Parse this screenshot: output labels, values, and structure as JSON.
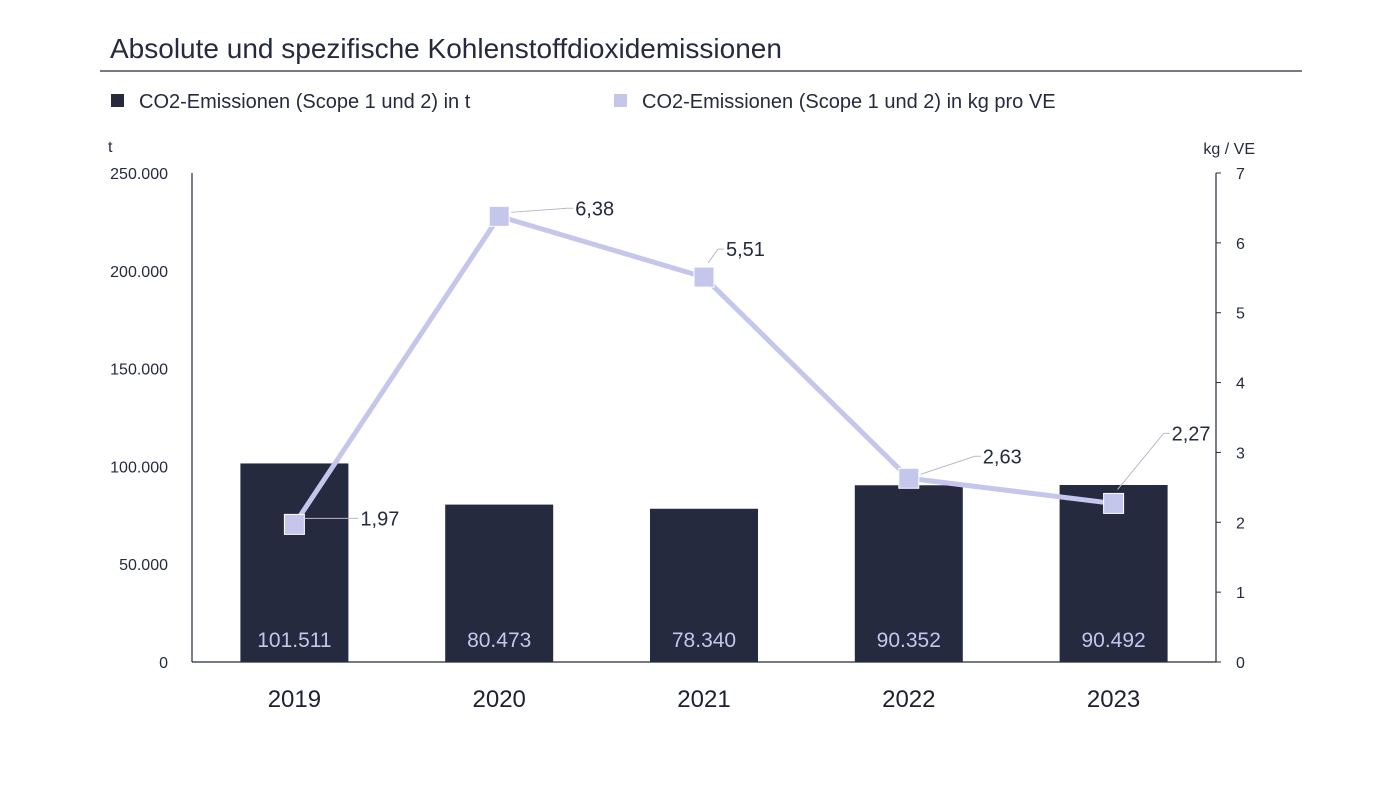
{
  "chart_data": {
    "type": "bar",
    "title": "Absolute und spezifische Kohlenstoffdioxidemissionen",
    "categories": [
      "2019",
      "2020",
      "2021",
      "2022",
      "2023"
    ],
    "series": [
      {
        "name": "CO2-Emissionen (Scope 1 und 2) in t",
        "type": "bar",
        "axis": "left",
        "values": [
          101511,
          80473,
          78340,
          90352,
          90492
        ],
        "labels": [
          "101.511",
          "80.473",
          "78.340",
          "90.352",
          "90.492"
        ],
        "color": "#252a3f",
        "label_color": "#c4c6ec"
      },
      {
        "name": "CO2-Emissionen (Scope 1 und 2) in kg pro VE",
        "type": "line",
        "axis": "right",
        "values": [
          1.97,
          6.38,
          5.51,
          2.63,
          2.27
        ],
        "labels": [
          "1,97",
          "6,38",
          "5,51",
          "2,63",
          "2,27"
        ],
        "color": "#c4c6ec"
      }
    ],
    "y_left": {
      "label": "t",
      "range": [
        0,
        250000
      ],
      "ticks": [
        0,
        50000,
        100000,
        150000,
        200000,
        250000
      ],
      "tick_labels": [
        "0",
        "50.000",
        "100.000",
        "150.000",
        "200.000",
        "250.000"
      ]
    },
    "y_right": {
      "label": "kg / VE",
      "range": [
        0,
        7
      ],
      "ticks": [
        0,
        1,
        2,
        3,
        4,
        5,
        6,
        7
      ],
      "tick_labels": [
        "0",
        "1",
        "2",
        "3",
        "4",
        "5",
        "6",
        "7"
      ]
    },
    "legend_position": "top-left",
    "grid": false
  }
}
